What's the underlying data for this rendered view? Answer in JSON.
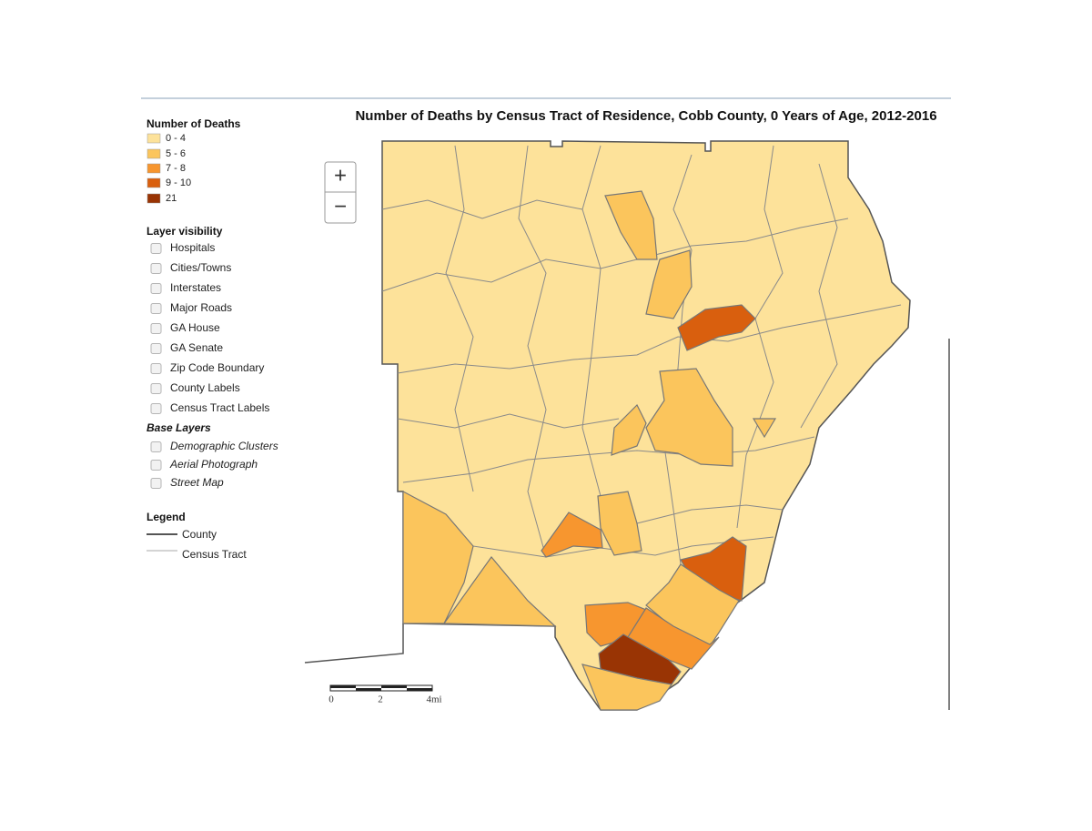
{
  "title": "Number of Deaths by Census Tract of Residence, Cobb County, 0 Years of Age, 2012-2016",
  "classes": {
    "title": "Number of Deaths",
    "items": [
      {
        "label": "0 - 4",
        "color": "#fde29a"
      },
      {
        "label": "5 - 6",
        "color": "#fbc55c"
      },
      {
        "label": "7 - 8",
        "color": "#f7962f"
      },
      {
        "label": "9 - 10",
        "color": "#d95f0e"
      },
      {
        "label": "21",
        "color": "#993404"
      }
    ]
  },
  "layer_visibility": {
    "title": "Layer visibility",
    "items": [
      "Hospitals",
      "Cities/Towns",
      "Interstates",
      "Major Roads",
      "GA House",
      "GA Senate",
      "Zip Code Boundary",
      "County Labels",
      "Census Tract Labels"
    ]
  },
  "base_layers": {
    "title": "Base Layers",
    "items": [
      "Demographic Clusters",
      "Aerial Photograph",
      "Street Map"
    ]
  },
  "legend": {
    "title": "Legend",
    "items": [
      "County",
      "Census Tract"
    ]
  },
  "zoom": {
    "in": "+",
    "out": "−"
  },
  "scale_bar": [
    "0",
    "2",
    "4mi"
  ]
}
